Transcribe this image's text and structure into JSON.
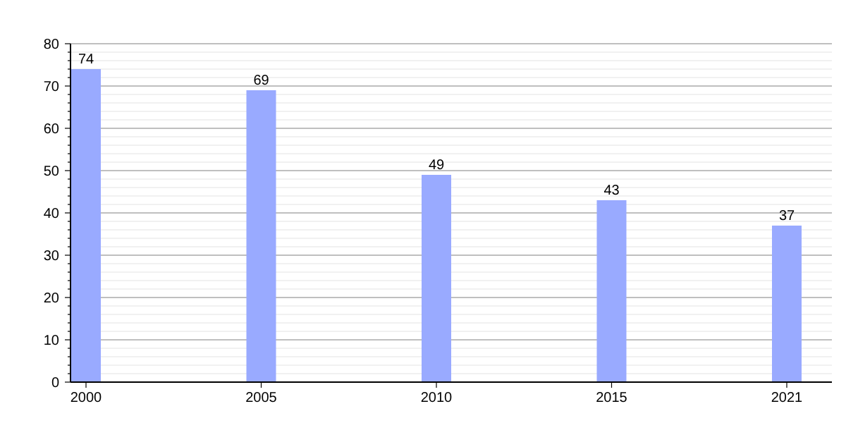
{
  "chart_data": {
    "type": "bar",
    "categories": [
      "2000",
      "2005",
      "2010",
      "2015",
      "2021"
    ],
    "values": [
      74,
      69,
      49,
      43,
      37
    ],
    "color": "#99aaff",
    "ylim": [
      0,
      80
    ],
    "yticks": [
      0,
      {
        "value": 2,
        "label": null
      },
      {
        "value": 4,
        "label": null
      },
      {
        "value": 6,
        "label": null
      },
      {
        "value": 8,
        "label": null
      },
      10,
      {
        "value": 12,
        "label": null
      },
      {
        "value": 14,
        "label": null
      },
      {
        "value": 16,
        "label": null
      },
      {
        "value": 18,
        "label": null
      },
      20,
      {
        "value": 22,
        "label": null
      },
      {
        "value": 24,
        "label": null
      },
      {
        "value": 26,
        "label": null
      },
      {
        "value": 28,
        "label": null
      },
      30,
      {
        "value": 32,
        "label": null
      },
      {
        "value": 34,
        "label": null
      },
      {
        "value": 36,
        "label": null
      },
      {
        "value": 38,
        "label": null
      },
      40,
      {
        "value": 42,
        "label": null
      },
      {
        "value": 44,
        "label": null
      },
      {
        "value": 46,
        "label": null
      },
      {
        "value": 48,
        "label": null
      },
      50,
      {
        "value": 52,
        "label": null
      },
      {
        "value": 54,
        "label": null
      },
      {
        "value": 56,
        "label": null
      },
      {
        "value": 58,
        "label": null
      },
      60,
      {
        "value": 62,
        "label": null
      },
      {
        "value": 64,
        "label": null
      },
      {
        "value": 66,
        "label": null
      },
      {
        "value": 68,
        "label": null
      },
      70,
      {
        "value": 72,
        "label": null
      },
      {
        "value": 74,
        "label": null
      },
      {
        "value": 76,
        "label": null
      },
      {
        "value": 78,
        "label": null
      },
      80
    ],
    "grid": "y",
    "data_labels": true
  }
}
